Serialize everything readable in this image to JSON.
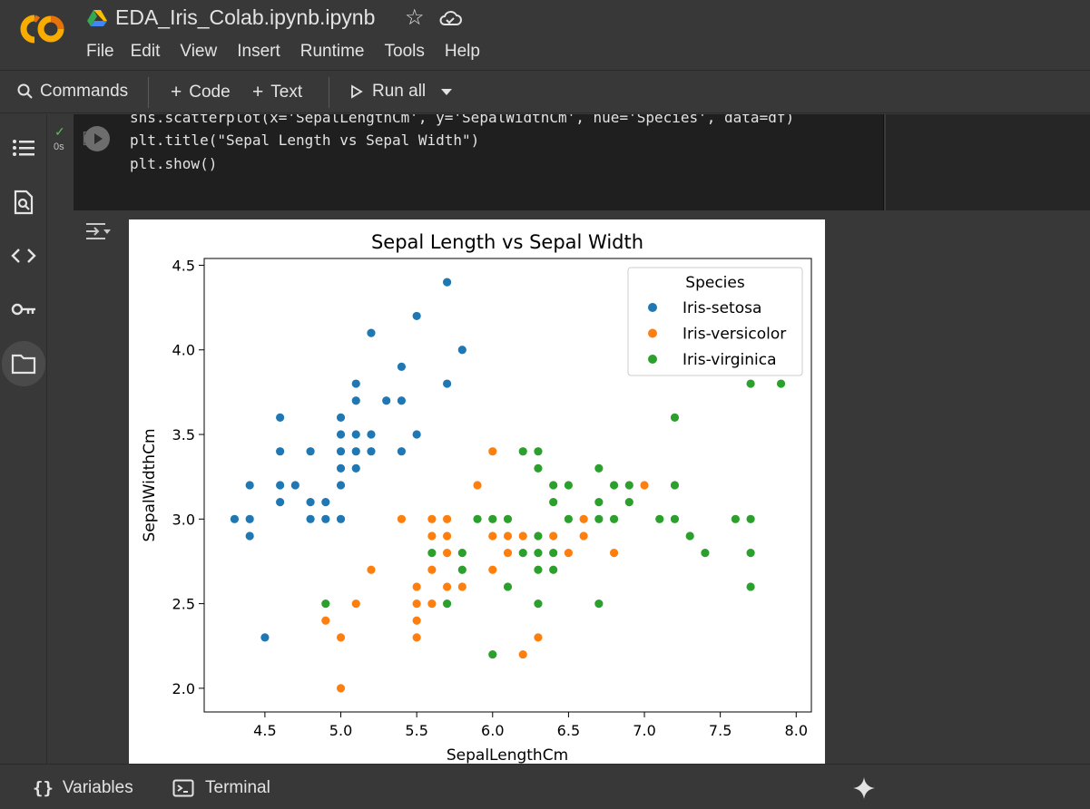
{
  "header": {
    "notebook_title": "EDA_Iris_Colab.ipynb.ipynb",
    "menu": [
      "File",
      "Edit",
      "View",
      "Insert",
      "Runtime",
      "Tools",
      "Help"
    ]
  },
  "toolbar": {
    "commands_label": "Commands",
    "code_label": "Code",
    "text_label": "Text",
    "run_all_label": "Run all"
  },
  "cell": {
    "exec_time": "0s",
    "bracket": "[ ]",
    "code_lines": [
      "sns.scatterplot(x='SepalLengthCm', y='SepalWidthCm', hue='Species', data=df)",
      "plt.title(\"Sepal Length vs Sepal Width\")",
      "plt.show()"
    ]
  },
  "statusbar": {
    "variables_label": "Variables",
    "terminal_label": "Terminal"
  },
  "chart_data": {
    "type": "scatter",
    "title": "Sepal Length vs Sepal Width",
    "xlabel": "SepalLengthCm",
    "ylabel": "SepalWidthCm",
    "xlim": [
      4.1,
      8.1
    ],
    "ylim": [
      1.86,
      4.54
    ],
    "xticks": [
      "4.5",
      "5.0",
      "5.5",
      "6.0",
      "6.5",
      "7.0",
      "7.5",
      "8.0"
    ],
    "yticks": [
      "2.0",
      "2.5",
      "3.0",
      "3.5",
      "4.0",
      "4.5"
    ],
    "legend_title": "Species",
    "legend_position": "top-right",
    "grid": false,
    "series": [
      {
        "name": "Iris-setosa",
        "color": "#1f77b4",
        "points": [
          [
            4.3,
            3.0
          ],
          [
            4.4,
            2.9
          ],
          [
            4.4,
            3.0
          ],
          [
            4.4,
            3.2
          ],
          [
            4.5,
            2.3
          ],
          [
            4.6,
            3.1
          ],
          [
            4.6,
            3.2
          ],
          [
            4.6,
            3.4
          ],
          [
            4.6,
            3.6
          ],
          [
            4.7,
            3.2
          ],
          [
            4.8,
            3.0
          ],
          [
            4.8,
            3.1
          ],
          [
            4.8,
            3.4
          ],
          [
            4.9,
            3.0
          ],
          [
            4.9,
            3.1
          ],
          [
            5.0,
            3.0
          ],
          [
            5.0,
            3.2
          ],
          [
            5.0,
            3.3
          ],
          [
            5.0,
            3.4
          ],
          [
            5.0,
            3.5
          ],
          [
            5.0,
            3.6
          ],
          [
            5.1,
            3.3
          ],
          [
            5.1,
            3.4
          ],
          [
            5.1,
            3.5
          ],
          [
            5.1,
            3.7
          ],
          [
            5.1,
            3.8
          ],
          [
            5.2,
            3.4
          ],
          [
            5.2,
            3.5
          ],
          [
            5.2,
            4.1
          ],
          [
            5.3,
            3.7
          ],
          [
            5.4,
            3.4
          ],
          [
            5.4,
            3.7
          ],
          [
            5.4,
            3.9
          ],
          [
            5.5,
            3.5
          ],
          [
            5.5,
            4.2
          ],
          [
            5.7,
            3.8
          ],
          [
            5.7,
            4.4
          ],
          [
            5.8,
            4.0
          ]
        ]
      },
      {
        "name": "Iris-versicolor",
        "color": "#ff7f0e",
        "points": [
          [
            4.9,
            2.4
          ],
          [
            5.0,
            2.0
          ],
          [
            5.0,
            2.3
          ],
          [
            5.1,
            2.5
          ],
          [
            5.2,
            2.7
          ],
          [
            5.4,
            3.0
          ],
          [
            5.5,
            2.3
          ],
          [
            5.5,
            2.4
          ],
          [
            5.5,
            2.5
          ],
          [
            5.5,
            2.6
          ],
          [
            5.6,
            2.5
          ],
          [
            5.6,
            2.7
          ],
          [
            5.6,
            2.9
          ],
          [
            5.6,
            3.0
          ],
          [
            5.7,
            2.6
          ],
          [
            5.7,
            2.8
          ],
          [
            5.7,
            2.9
          ],
          [
            5.7,
            3.0
          ],
          [
            5.8,
            2.6
          ],
          [
            5.8,
            2.7
          ],
          [
            5.9,
            3.0
          ],
          [
            5.9,
            3.2
          ],
          [
            6.0,
            2.2
          ],
          [
            6.0,
            2.7
          ],
          [
            6.0,
            2.9
          ],
          [
            6.0,
            3.4
          ],
          [
            6.1,
            2.8
          ],
          [
            6.1,
            2.9
          ],
          [
            6.1,
            3.0
          ],
          [
            6.2,
            2.2
          ],
          [
            6.2,
            2.9
          ],
          [
            6.3,
            2.3
          ],
          [
            6.3,
            2.5
          ],
          [
            6.3,
            3.3
          ],
          [
            6.4,
            2.9
          ],
          [
            6.4,
            3.2
          ],
          [
            6.5,
            2.8
          ],
          [
            6.6,
            2.9
          ],
          [
            6.6,
            3.0
          ],
          [
            6.7,
            3.0
          ],
          [
            6.7,
            3.1
          ],
          [
            6.8,
            2.8
          ],
          [
            6.9,
            3.1
          ],
          [
            7.0,
            3.2
          ]
        ]
      },
      {
        "name": "Iris-virginica",
        "color": "#2ca02c",
        "points": [
          [
            4.9,
            2.5
          ],
          [
            5.6,
            2.8
          ],
          [
            5.7,
            2.5
          ],
          [
            5.8,
            2.7
          ],
          [
            5.8,
            2.8
          ],
          [
            5.9,
            3.0
          ],
          [
            6.0,
            2.2
          ],
          [
            6.0,
            3.0
          ],
          [
            6.1,
            2.6
          ],
          [
            6.1,
            3.0
          ],
          [
            6.2,
            2.8
          ],
          [
            6.2,
            3.4
          ],
          [
            6.3,
            2.5
          ],
          [
            6.3,
            2.7
          ],
          [
            6.3,
            2.8
          ],
          [
            6.3,
            2.9
          ],
          [
            6.3,
            3.3
          ],
          [
            6.3,
            3.4
          ],
          [
            6.4,
            2.7
          ],
          [
            6.4,
            2.8
          ],
          [
            6.4,
            3.1
          ],
          [
            6.4,
            3.2
          ],
          [
            6.5,
            3.0
          ],
          [
            6.5,
            3.2
          ],
          [
            6.7,
            2.5
          ],
          [
            6.7,
            3.0
          ],
          [
            6.7,
            3.1
          ],
          [
            6.7,
            3.3
          ],
          [
            6.8,
            3.0
          ],
          [
            6.8,
            3.2
          ],
          [
            6.9,
            3.1
          ],
          [
            6.9,
            3.2
          ],
          [
            7.1,
            3.0
          ],
          [
            7.2,
            3.0
          ],
          [
            7.2,
            3.2
          ],
          [
            7.2,
            3.6
          ],
          [
            7.3,
            2.9
          ],
          [
            7.4,
            2.8
          ],
          [
            7.6,
            3.0
          ],
          [
            7.7,
            2.6
          ],
          [
            7.7,
            2.8
          ],
          [
            7.7,
            3.0
          ],
          [
            7.7,
            3.8
          ],
          [
            7.9,
            3.8
          ]
        ]
      }
    ]
  }
}
